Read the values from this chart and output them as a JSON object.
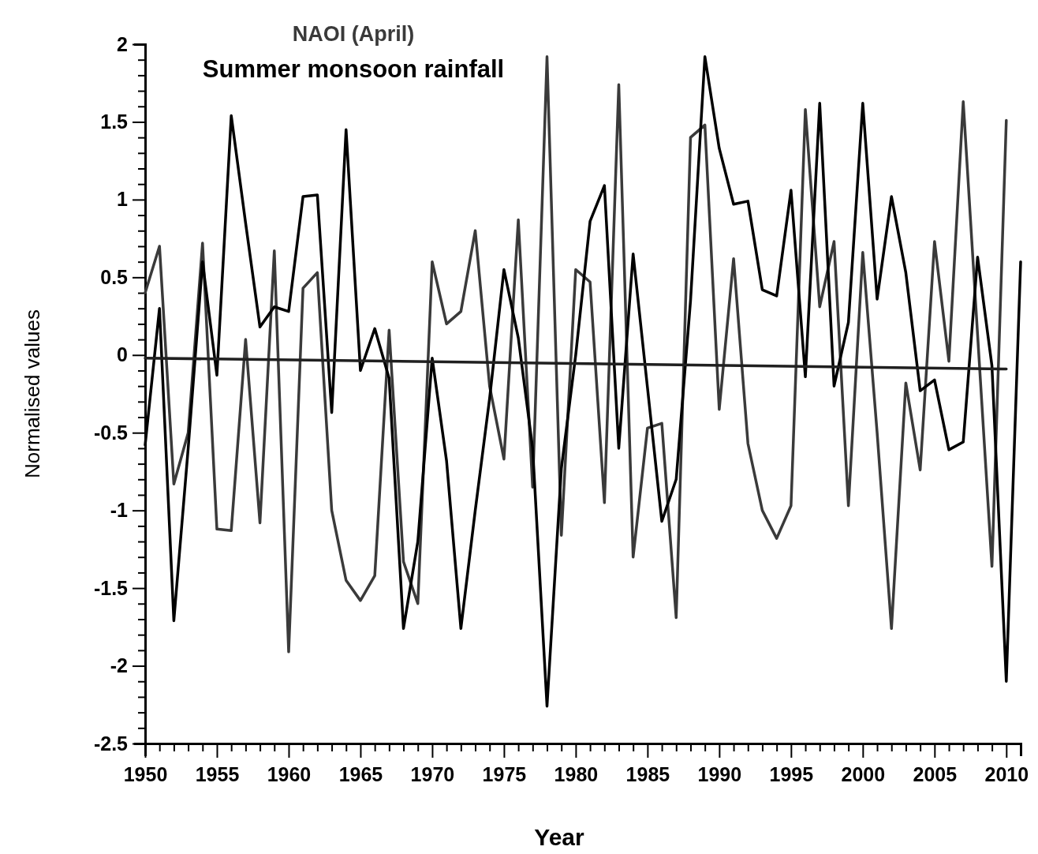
{
  "chart_data": {
    "type": "line",
    "xlabel": "Year",
    "ylabel": "Normalised values",
    "legend": "top left",
    "xlim": [
      1950,
      2011
    ],
    "ylim": [
      -2.5,
      2
    ],
    "xticks": [
      1950,
      {
        "value": 1951,
        "label": null
      },
      {
        "value": 1952,
        "label": null
      },
      {
        "value": 1953,
        "label": null
      },
      {
        "value": 1954,
        "label": null
      },
      1955,
      {
        "value": 1956,
        "label": null
      },
      {
        "value": 1957,
        "label": null
      },
      {
        "value": 1958,
        "label": null
      },
      {
        "value": 1959,
        "label": null
      },
      1960,
      {
        "value": 1961,
        "label": null
      },
      {
        "value": 1962,
        "label": null
      },
      {
        "value": 1963,
        "label": null
      },
      {
        "value": 1964,
        "label": null
      },
      1965,
      {
        "value": 1966,
        "label": null
      },
      {
        "value": 1967,
        "label": null
      },
      {
        "value": 1968,
        "label": null
      },
      {
        "value": 1969,
        "label": null
      },
      1970,
      {
        "value": 1971,
        "label": null
      },
      {
        "value": 1972,
        "label": null
      },
      {
        "value": 1973,
        "label": null
      },
      {
        "value": 1974,
        "label": null
      },
      1975,
      {
        "value": 1976,
        "label": null
      },
      {
        "value": 1977,
        "label": null
      },
      {
        "value": 1978,
        "label": null
      },
      {
        "value": 1979,
        "label": null
      },
      1980,
      {
        "value": 1981,
        "label": null
      },
      {
        "value": 1982,
        "label": null
      },
      {
        "value": 1983,
        "label": null
      },
      {
        "value": 1984,
        "label": null
      },
      1985,
      {
        "value": 1986,
        "label": null
      },
      {
        "value": 1987,
        "label": null
      },
      {
        "value": 1988,
        "label": null
      },
      {
        "value": 1989,
        "label": null
      },
      1990,
      {
        "value": 1991,
        "label": null
      },
      {
        "value": 1992,
        "label": null
      },
      {
        "value": 1993,
        "label": null
      },
      {
        "value": 1994,
        "label": null
      },
      1995,
      {
        "value": 1996,
        "label": null
      },
      {
        "value": 1997,
        "label": null
      },
      {
        "value": 1998,
        "label": null
      },
      {
        "value": 1999,
        "label": null
      },
      2000,
      {
        "value": 2001,
        "label": null
      },
      {
        "value": 2002,
        "label": null
      },
      {
        "value": 2003,
        "label": null
      },
      {
        "value": 2004,
        "label": null
      },
      2005,
      {
        "value": 2006,
        "label": null
      },
      {
        "value": 2007,
        "label": null
      },
      {
        "value": 2008,
        "label": null
      },
      {
        "value": 2009,
        "label": null
      },
      2010
    ],
    "yticks": [
      -2.5,
      {
        "value": -2.4,
        "label": null
      },
      {
        "value": -2.3,
        "label": null
      },
      {
        "value": -2.2,
        "label": null
      },
      {
        "value": -2.1,
        "label": null
      },
      -2,
      {
        "value": -1.9,
        "label": null
      },
      {
        "value": -1.8,
        "label": null
      },
      {
        "value": -1.7,
        "label": null
      },
      {
        "value": -1.6,
        "label": null
      },
      -1.5,
      {
        "value": -1.4,
        "label": null
      },
      {
        "value": -1.3,
        "label": null
      },
      {
        "value": -1.2,
        "label": null
      },
      {
        "value": -1.1,
        "label": null
      },
      -1,
      {
        "value": -0.9,
        "label": null
      },
      {
        "value": -0.8,
        "label": null
      },
      {
        "value": -0.7,
        "label": null
      },
      {
        "value": -0.6,
        "label": null
      },
      -0.5,
      {
        "value": -0.4,
        "label": null
      },
      {
        "value": -0.3,
        "label": null
      },
      {
        "value": -0.2,
        "label": null
      },
      {
        "value": -0.1,
        "label": null
      },
      0,
      {
        "value": 0.1,
        "label": null
      },
      {
        "value": 0.2,
        "label": null
      },
      {
        "value": 0.3,
        "label": null
      },
      {
        "value": 0.4,
        "label": null
      },
      0.5,
      {
        "value": 0.6,
        "label": null
      },
      {
        "value": 0.7,
        "label": null
      },
      {
        "value": 0.8,
        "label": null
      },
      {
        "value": 0.9,
        "label": null
      },
      1,
      {
        "value": 1.1,
        "label": null
      },
      {
        "value": 1.2,
        "label": null
      },
      {
        "value": 1.3,
        "label": null
      },
      {
        "value": 1.4,
        "label": null
      },
      1.5,
      {
        "value": 1.6,
        "label": null
      },
      {
        "value": 1.7,
        "label": null
      },
      {
        "value": 1.8,
        "label": null
      },
      {
        "value": 1.9,
        "label": null
      },
      2
    ],
    "x": [
      1950,
      1951,
      1952,
      1953,
      1954,
      1955,
      1956,
      1957,
      1958,
      1959,
      1960,
      1961,
      1962,
      1963,
      1964,
      1965,
      1966,
      1967,
      1968,
      1969,
      1970,
      1971,
      1972,
      1973,
      1974,
      1975,
      1976,
      1977,
      1978,
      1979,
      1980,
      1981,
      1982,
      1983,
      1984,
      1985,
      1986,
      1987,
      1988,
      1989,
      1990,
      1991,
      1992,
      1993,
      1994,
      1995,
      1996,
      1997,
      1998,
      1999,
      2000,
      2001,
      2002,
      2003,
      2004,
      2005,
      2006,
      2007,
      2008,
      2009,
      2010,
      2011
    ],
    "series": [
      {
        "name": "NAOI (April)",
        "color": "#3a3a3a",
        "values": [
          0.4,
          0.7,
          -0.83,
          -0.5,
          0.72,
          -1.12,
          -1.13,
          0.1,
          -1.08,
          0.67,
          -1.91,
          0.43,
          0.53,
          -1.0,
          -1.45,
          -1.58,
          -1.42,
          0.16,
          -1.33,
          -1.6,
          0.6,
          0.2,
          0.28,
          0.8,
          -0.2,
          -0.67,
          0.87,
          -0.85,
          1.92,
          -1.16,
          0.55,
          0.47,
          -0.95,
          1.74,
          -1.3,
          -0.47,
          -0.44,
          -1.69,
          1.4,
          1.48,
          -0.35,
          0.62,
          -0.57,
          -1.0,
          -1.18,
          -0.97,
          1.58,
          0.31,
          0.73,
          -0.97,
          0.66,
          -0.5,
          -1.76,
          -0.18,
          -0.74,
          0.73,
          -0.04,
          1.63,
          0.13,
          -1.36,
          1.51,
          null
        ]
      },
      {
        "name": "Summer monsoon rainfall",
        "color": "#000000",
        "values": [
          -0.58,
          0.3,
          -1.71,
          -0.6,
          0.6,
          -0.13,
          1.54,
          0.85,
          0.18,
          0.31,
          0.28,
          1.02,
          1.03,
          -0.37,
          1.45,
          -0.1,
          0.17,
          -0.15,
          -1.76,
          -1.2,
          -0.02,
          -0.68,
          -1.76,
          -1.0,
          -0.28,
          0.55,
          0.11,
          -0.6,
          -2.26,
          -0.73,
          0.0,
          0.86,
          1.09,
          -0.6,
          0.65,
          -0.21,
          -1.07,
          -0.8,
          0.35,
          1.92,
          1.33,
          0.97,
          0.99,
          0.42,
          0.38,
          1.06,
          -0.14,
          1.62,
          -0.2,
          0.21,
          1.62,
          0.36,
          1.02,
          0.53,
          -0.23,
          -0.16,
          -0.61,
          -0.56,
          0.63,
          -0.07,
          -2.1,
          0.6
        ]
      },
      {
        "type": "line",
        "color": "#202020",
        "x": [
          1950,
          2010
        ],
        "values": [
          -0.02,
          -0.09
        ]
      }
    ]
  }
}
